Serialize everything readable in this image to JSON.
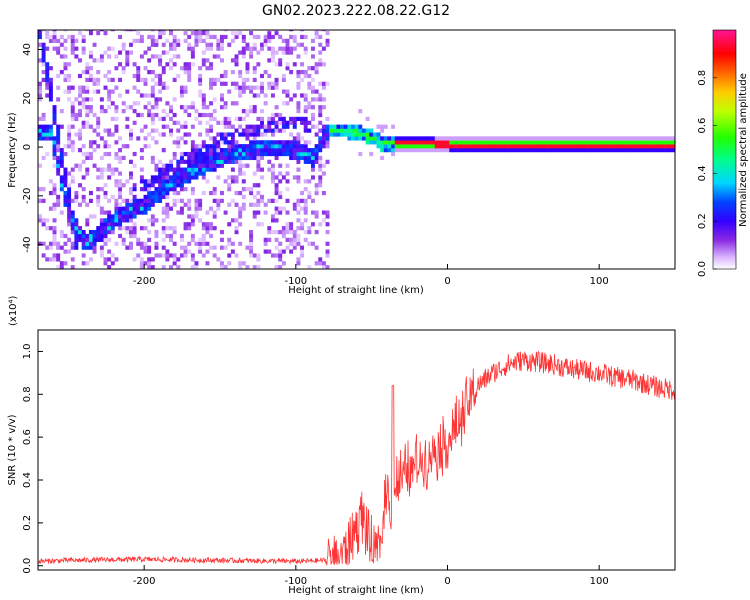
{
  "title": "GN02.2023.222.08.22.G12",
  "chart_data": [
    {
      "type": "heatmap",
      "xlabel": "Height of straight line (km)",
      "ylabel": "Frequency (Hz)",
      "xlim": [
        -270,
        150
      ],
      "ylim": [
        -50,
        48
      ],
      "xticks": [
        -200,
        -100,
        0,
        100
      ],
      "yticks": [
        40,
        20,
        0,
        -20,
        -40
      ],
      "colorbar": {
        "label": "Normalized spectral amplitude",
        "range": [
          0.0,
          1.0
        ],
        "ticks": [
          0.0,
          0.2,
          0.4,
          0.6,
          0.8
        ],
        "colormap": [
          "#ffffff",
          "#b060ff",
          "#5000ff",
          "#0000ff",
          "#00ffff",
          "#00ff00",
          "#ffff00",
          "#ff8000",
          "#ff0000",
          "#ff1493"
        ]
      },
      "ridge": {
        "x": [
          -262,
          -255,
          -248,
          -240,
          -230,
          -220,
          -200,
          -180,
          -160,
          -140,
          -120,
          -100,
          -90,
          -80,
          -70,
          -60,
          -50,
          -45,
          -40,
          -30,
          -20,
          -10,
          0,
          20,
          50,
          100,
          150
        ],
        "y": [
          5,
          -18,
          -32,
          -40,
          -36,
          -30,
          -24,
          -14,
          -8,
          -3,
          -1,
          -2,
          -5,
          6,
          6,
          5,
          3,
          1,
          1,
          1,
          1,
          0.5,
          0.3,
          0.3,
          0.3,
          0.3,
          0.3
        ]
      }
    },
    {
      "type": "line",
      "xlabel": "Height of straight line (km)",
      "ylabel": "SNR (10 * v/v)",
      "y_multiplier": "(x10⁴)",
      "xlim": [
        -270,
        150
      ],
      "ylim": [
        -0.02,
        1.1
      ],
      "xticks": [
        -200,
        -100,
        0,
        100
      ],
      "yticks": [
        0.0,
        0.2,
        0.4,
        0.6,
        0.8,
        1.0
      ],
      "color": "#ff3333",
      "series": [
        {
          "x": [
            -270,
            -250,
            -200,
            -150,
            -100,
            -80,
            -70,
            -65,
            -60,
            -57,
            -55,
            -52,
            -50,
            -48,
            -45,
            -42,
            -40,
            -38,
            -36,
            -34,
            -30,
            -25,
            -20,
            -15,
            -10,
            -5,
            0,
            5,
            10,
            15,
            20,
            30,
            40,
            50,
            60,
            70,
            80,
            90,
            100,
            110,
            120,
            130,
            140,
            150
          ],
          "y": [
            0.02,
            0.025,
            0.03,
            0.025,
            0.02,
            0.025,
            0.05,
            0.1,
            0.18,
            0.25,
            0.22,
            0.12,
            0.06,
            0.04,
            0.08,
            0.2,
            0.42,
            0.25,
            0.32,
            0.38,
            0.4,
            0.44,
            0.48,
            0.5,
            0.53,
            0.56,
            0.58,
            0.62,
            0.7,
            0.78,
            0.84,
            0.9,
            0.94,
            0.96,
            0.95,
            0.94,
            0.92,
            0.91,
            0.9,
            0.88,
            0.87,
            0.85,
            0.83,
            0.82
          ]
        }
      ],
      "spike": {
        "x": -36,
        "y": 0.84
      },
      "grid": false
    }
  ]
}
